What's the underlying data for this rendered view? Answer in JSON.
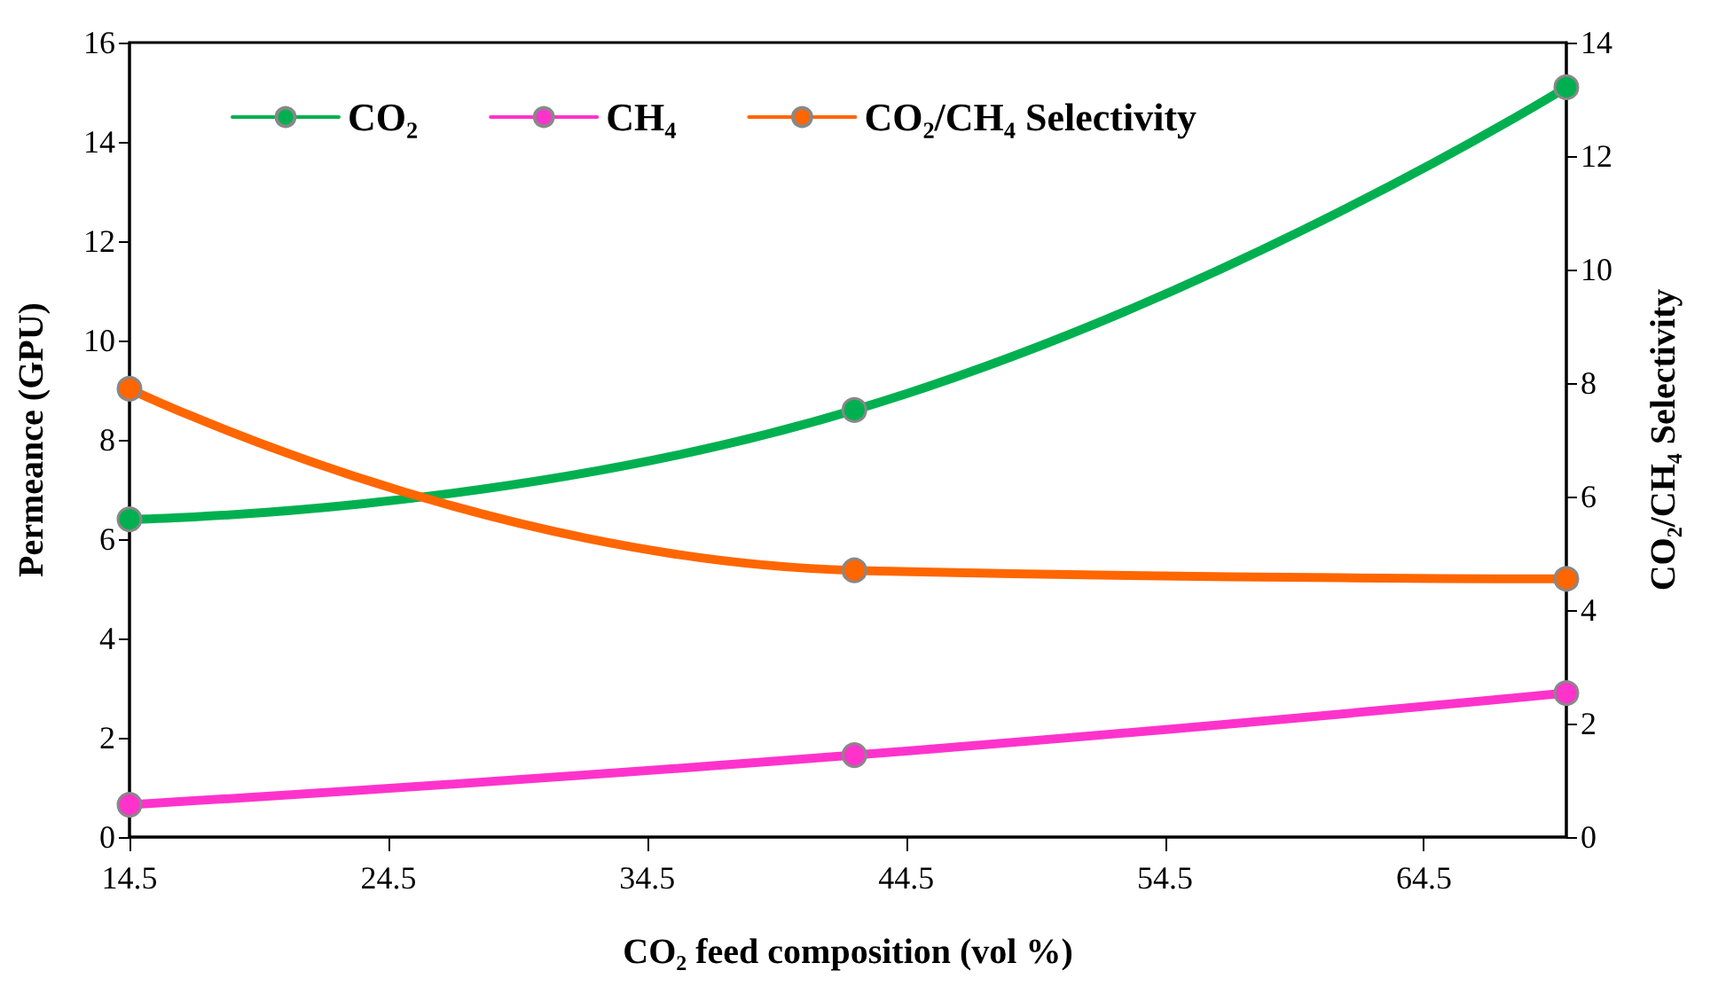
{
  "chart_data": {
    "type": "line",
    "xlabel": "CO₂ feed composition (vol %)",
    "ylabel": "Permeance (GPU)",
    "y2label": "CO₂/CH₄ Selectivity",
    "x": [
      14.5,
      42.5,
      70
    ],
    "xlim": [
      14.5,
      70
    ],
    "xticks": [
      14.5,
      24.5,
      34.5,
      44.5,
      54.5,
      64.5
    ],
    "ylim": [
      0,
      16
    ],
    "yticks": [
      0,
      2,
      4,
      6,
      8,
      10,
      12,
      14,
      16
    ],
    "y2lim": [
      0,
      14
    ],
    "y2ticks": [
      0,
      2,
      4,
      6,
      8,
      10,
      12,
      14
    ],
    "series": [
      {
        "name": "CO₂",
        "color": "#00b050",
        "values": [
          6.4,
          8.6,
          15.1
        ]
      },
      {
        "name": "CH₄",
        "color": "#ff33cc",
        "values": [
          0.65,
          1.65,
          2.9
        ]
      },
      {
        "name": "CO₂/CH₄ Selectivity",
        "color": "#ff6600",
        "axis": "y2",
        "values": [
          7.9,
          4.7,
          4.55
        ]
      }
    ],
    "legend": "top left",
    "grid": false,
    "marker": "circle",
    "line_style": "solid"
  }
}
